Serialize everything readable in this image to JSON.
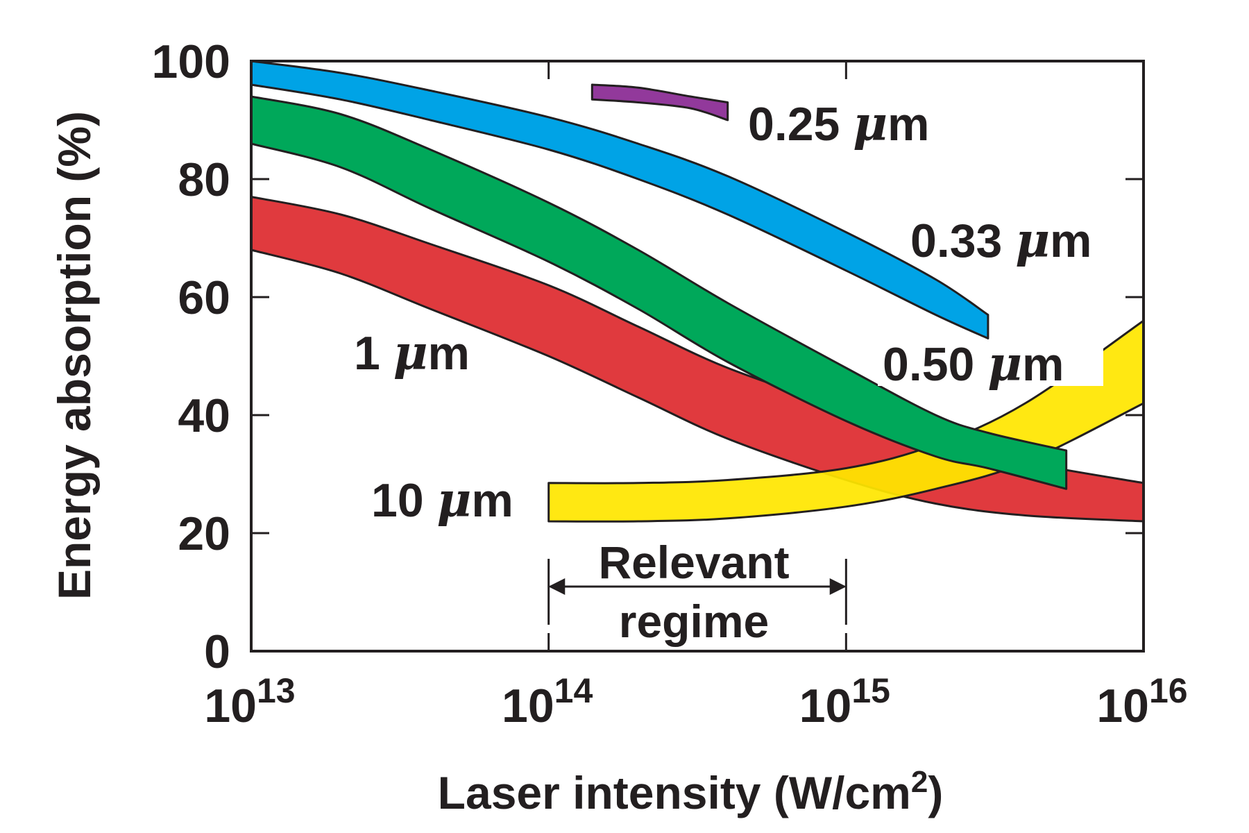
{
  "chart_data": {
    "type": "area",
    "xlabel_main": "Laser intensity (W/cm",
    "xlabel_sup": "2",
    "xlabel_close": ")",
    "ylabel": "Energy absorption (%)",
    "x_scale": "log",
    "xlim": [
      10000000000000.0,
      1e+16
    ],
    "ylim": [
      0,
      100
    ],
    "x_ticks": [
      {
        "base": "10",
        "exp": "13",
        "value": 10000000000000.0
      },
      {
        "base": "10",
        "exp": "14",
        "value": 100000000000000.0
      },
      {
        "base": "10",
        "exp": "15",
        "value": 1000000000000000.0
      },
      {
        "base": "10",
        "exp": "16",
        "value": 1e+16
      }
    ],
    "y_ticks": [
      "0",
      "20",
      "40",
      "60",
      "80",
      "100"
    ],
    "y_tick_values": [
      0,
      20,
      40,
      60,
      80,
      100
    ],
    "grid": false,
    "series": [
      {
        "name": "1",
        "unit": "m",
        "color": "#e03a3e",
        "x": [
          10000000000000.0,
          20000000000000.0,
          40000000000000.0,
          100000000000000.0,
          200000000000000.0,
          400000000000000.0,
          1000000000000000.0,
          2000000000000000.0,
          4000000000000000.0,
          1e+16
        ],
        "upper": [
          77,
          74,
          69,
          62,
          55,
          48,
          41,
          36,
          32,
          28.5
        ],
        "lower": [
          68,
          64,
          58,
          50,
          43,
          36,
          29,
          25,
          23,
          22
        ]
      },
      {
        "name": "10",
        "unit": "m",
        "color": "#ffe600",
        "x": [
          100000000000000.0,
          200000000000000.0,
          400000000000000.0,
          1000000000000000.0,
          2000000000000000.0,
          4000000000000000.0,
          1e+16
        ],
        "upper": [
          28.5,
          28.5,
          29,
          31,
          35,
          42,
          56
        ],
        "lower": [
          22,
          22,
          22.5,
          24.5,
          27.5,
          32,
          42
        ]
      },
      {
        "name": "0.50",
        "unit": "m",
        "color": "#00a85a",
        "x": [
          10000000000000.0,
          20000000000000.0,
          40000000000000.0,
          100000000000000.0,
          200000000000000.0,
          400000000000000.0,
          1000000000000000.0,
          2000000000000000.0,
          3000000000000000.0,
          5500000000000000.0
        ],
        "upper": [
          94,
          91,
          85,
          76,
          68,
          59,
          48,
          40,
          37,
          34
        ],
        "lower": [
          86,
          82,
          75,
          66,
          58,
          49,
          39,
          33,
          31,
          27.5
        ]
      },
      {
        "name": "0.33",
        "unit": "m",
        "color": "#00a3e6",
        "x": [
          10000000000000.0,
          20000000000000.0,
          40000000000000.0,
          100000000000000.0,
          200000000000000.0,
          400000000000000.0,
          1000000000000000.0,
          2000000000000000.0,
          3000000000000000.0
        ],
        "upper": [
          100,
          98,
          95,
          90.5,
          86,
          80.5,
          71,
          63,
          57
        ],
        "lower": [
          96,
          93.5,
          90,
          85,
          80,
          74,
          64.5,
          57,
          53
        ]
      },
      {
        "name": "0.25",
        "unit": "m",
        "color": "#92399b",
        "x": [
          140000000000000.0,
          200000000000000.0,
          300000000000000.0,
          400000000000000.0
        ],
        "upper": [
          96,
          95.5,
          94,
          93
        ],
        "lower": [
          93.5,
          93,
          92,
          90
        ]
      }
    ],
    "annotations": {
      "bracket_x": [
        100000000000000.0,
        1000000000000000.0
      ],
      "line1": "Relevant",
      "line2": "regime",
      "mu_symbol": "μ"
    }
  }
}
